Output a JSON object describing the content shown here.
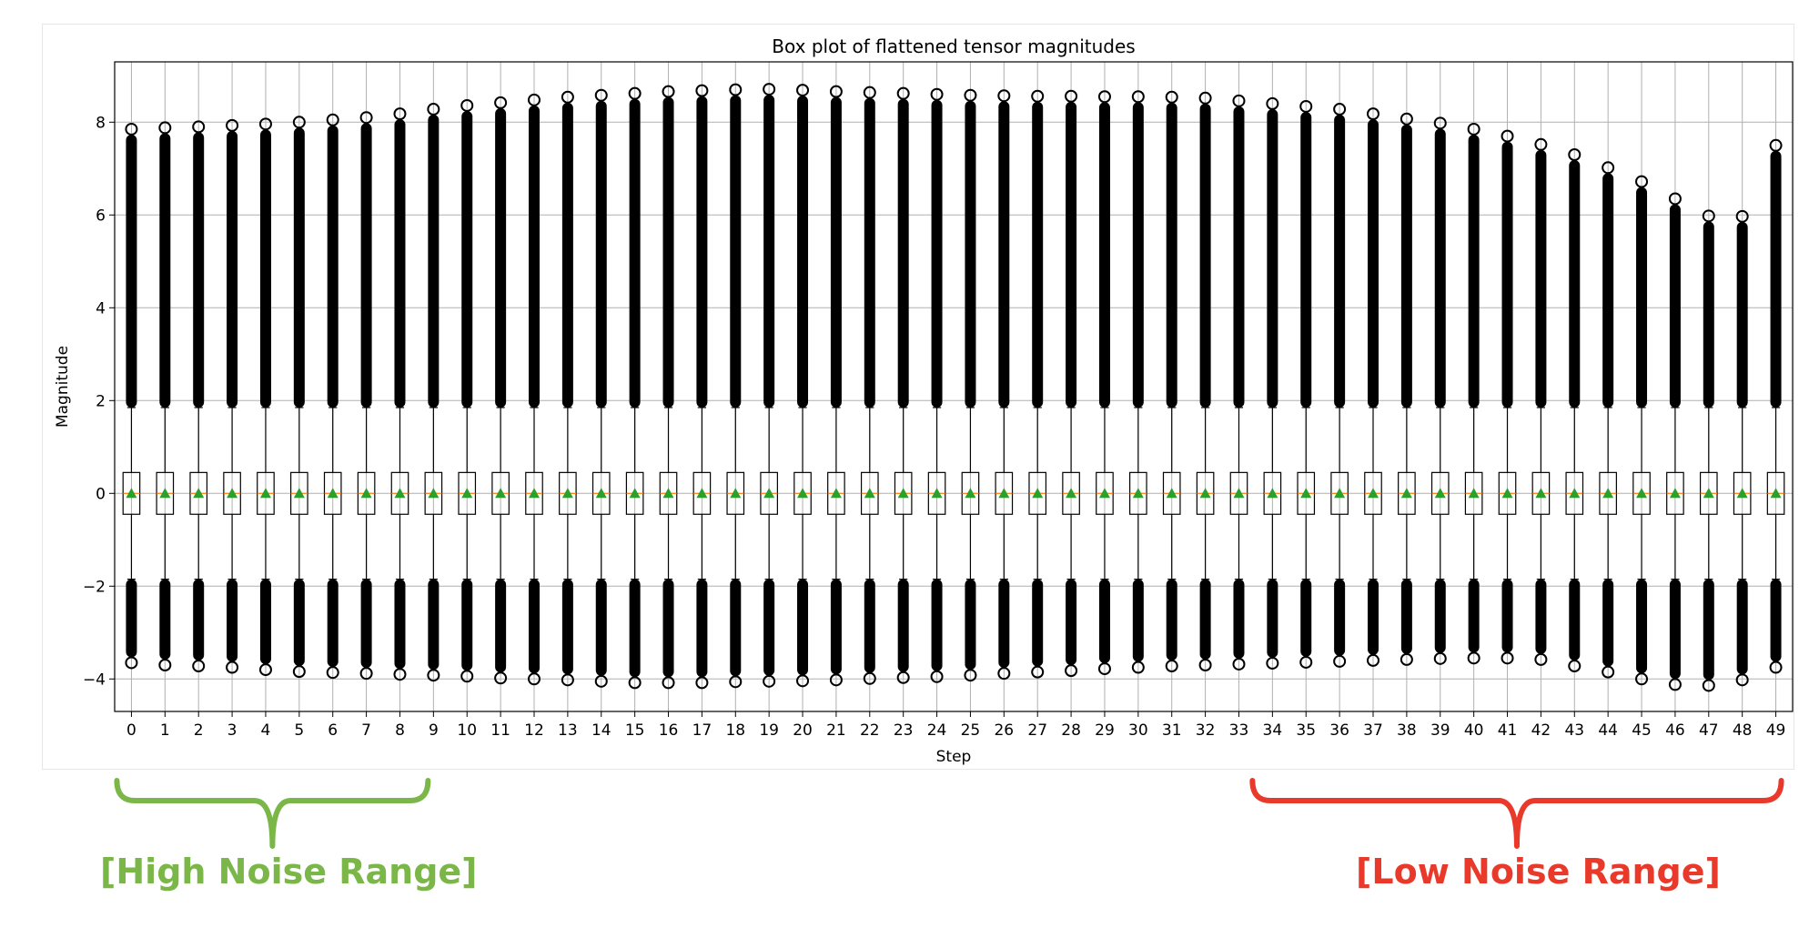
{
  "chart_data": {
    "type": "box",
    "title": "Box plot of flattened tensor magnitudes",
    "xlabel": "Step",
    "ylabel": "Magnitude",
    "ylim": [
      -4.7,
      9.3
    ],
    "yticks": [
      -4,
      -2,
      0,
      2,
      4,
      6,
      8
    ],
    "ytick_labels": [
      "−4",
      "−2",
      "0",
      "2",
      "4",
      "6",
      "8"
    ],
    "grid": true,
    "categories": [
      "0",
      "1",
      "2",
      "3",
      "4",
      "5",
      "6",
      "7",
      "8",
      "9",
      "10",
      "11",
      "12",
      "13",
      "14",
      "15",
      "16",
      "17",
      "18",
      "19",
      "20",
      "21",
      "22",
      "23",
      "24",
      "25",
      "26",
      "27",
      "28",
      "29",
      "30",
      "31",
      "32",
      "33",
      "34",
      "35",
      "36",
      "37",
      "38",
      "39",
      "40",
      "41",
      "42",
      "43",
      "44",
      "45",
      "46",
      "47",
      "48",
      "49"
    ],
    "box": {
      "q1": -0.45,
      "median": 0.0,
      "mean": 0.0,
      "q3": 0.45,
      "whisker_low": -1.85,
      "whisker_high": 1.85
    },
    "outlier_max": [
      7.85,
      7.88,
      7.9,
      7.93,
      7.96,
      8.0,
      8.05,
      8.1,
      8.18,
      8.28,
      8.36,
      8.42,
      8.48,
      8.54,
      8.58,
      8.62,
      8.66,
      8.68,
      8.7,
      8.71,
      8.69,
      8.66,
      8.64,
      8.62,
      8.6,
      8.58,
      8.57,
      8.56,
      8.56,
      8.55,
      8.55,
      8.54,
      8.52,
      8.46,
      8.4,
      8.34,
      8.28,
      8.18,
      8.07,
      7.98,
      7.85,
      7.7,
      7.52,
      7.3,
      7.02,
      6.72,
      6.35,
      5.98,
      5.97,
      7.5
    ],
    "outlier_min": [
      -3.65,
      -3.7,
      -3.72,
      -3.75,
      -3.8,
      -3.84,
      -3.86,
      -3.88,
      -3.9,
      -3.92,
      -3.94,
      -3.98,
      -4.0,
      -4.02,
      -4.05,
      -4.08,
      -4.08,
      -4.08,
      -4.06,
      -4.05,
      -4.04,
      -4.02,
      -3.99,
      -3.97,
      -3.95,
      -3.92,
      -3.88,
      -3.85,
      -3.82,
      -3.78,
      -3.75,
      -3.72,
      -3.7,
      -3.68,
      -3.66,
      -3.64,
      -3.62,
      -3.6,
      -3.58,
      -3.56,
      -3.55,
      -3.55,
      -3.58,
      -3.72,
      -3.85,
      -4.0,
      -4.12,
      -4.14,
      -4.02,
      -3.75
    ],
    "colors": {
      "box": "#000000",
      "median": "#ff7f0e",
      "mean": "#2ca02c",
      "grid": "#b0b0b0",
      "outliers": "#000000"
    }
  },
  "annotations": {
    "high": {
      "label": "[High Noise Range]",
      "color": "#7ab648"
    },
    "low": {
      "label": "[Low Noise Range]",
      "color": "#e8392b"
    }
  }
}
